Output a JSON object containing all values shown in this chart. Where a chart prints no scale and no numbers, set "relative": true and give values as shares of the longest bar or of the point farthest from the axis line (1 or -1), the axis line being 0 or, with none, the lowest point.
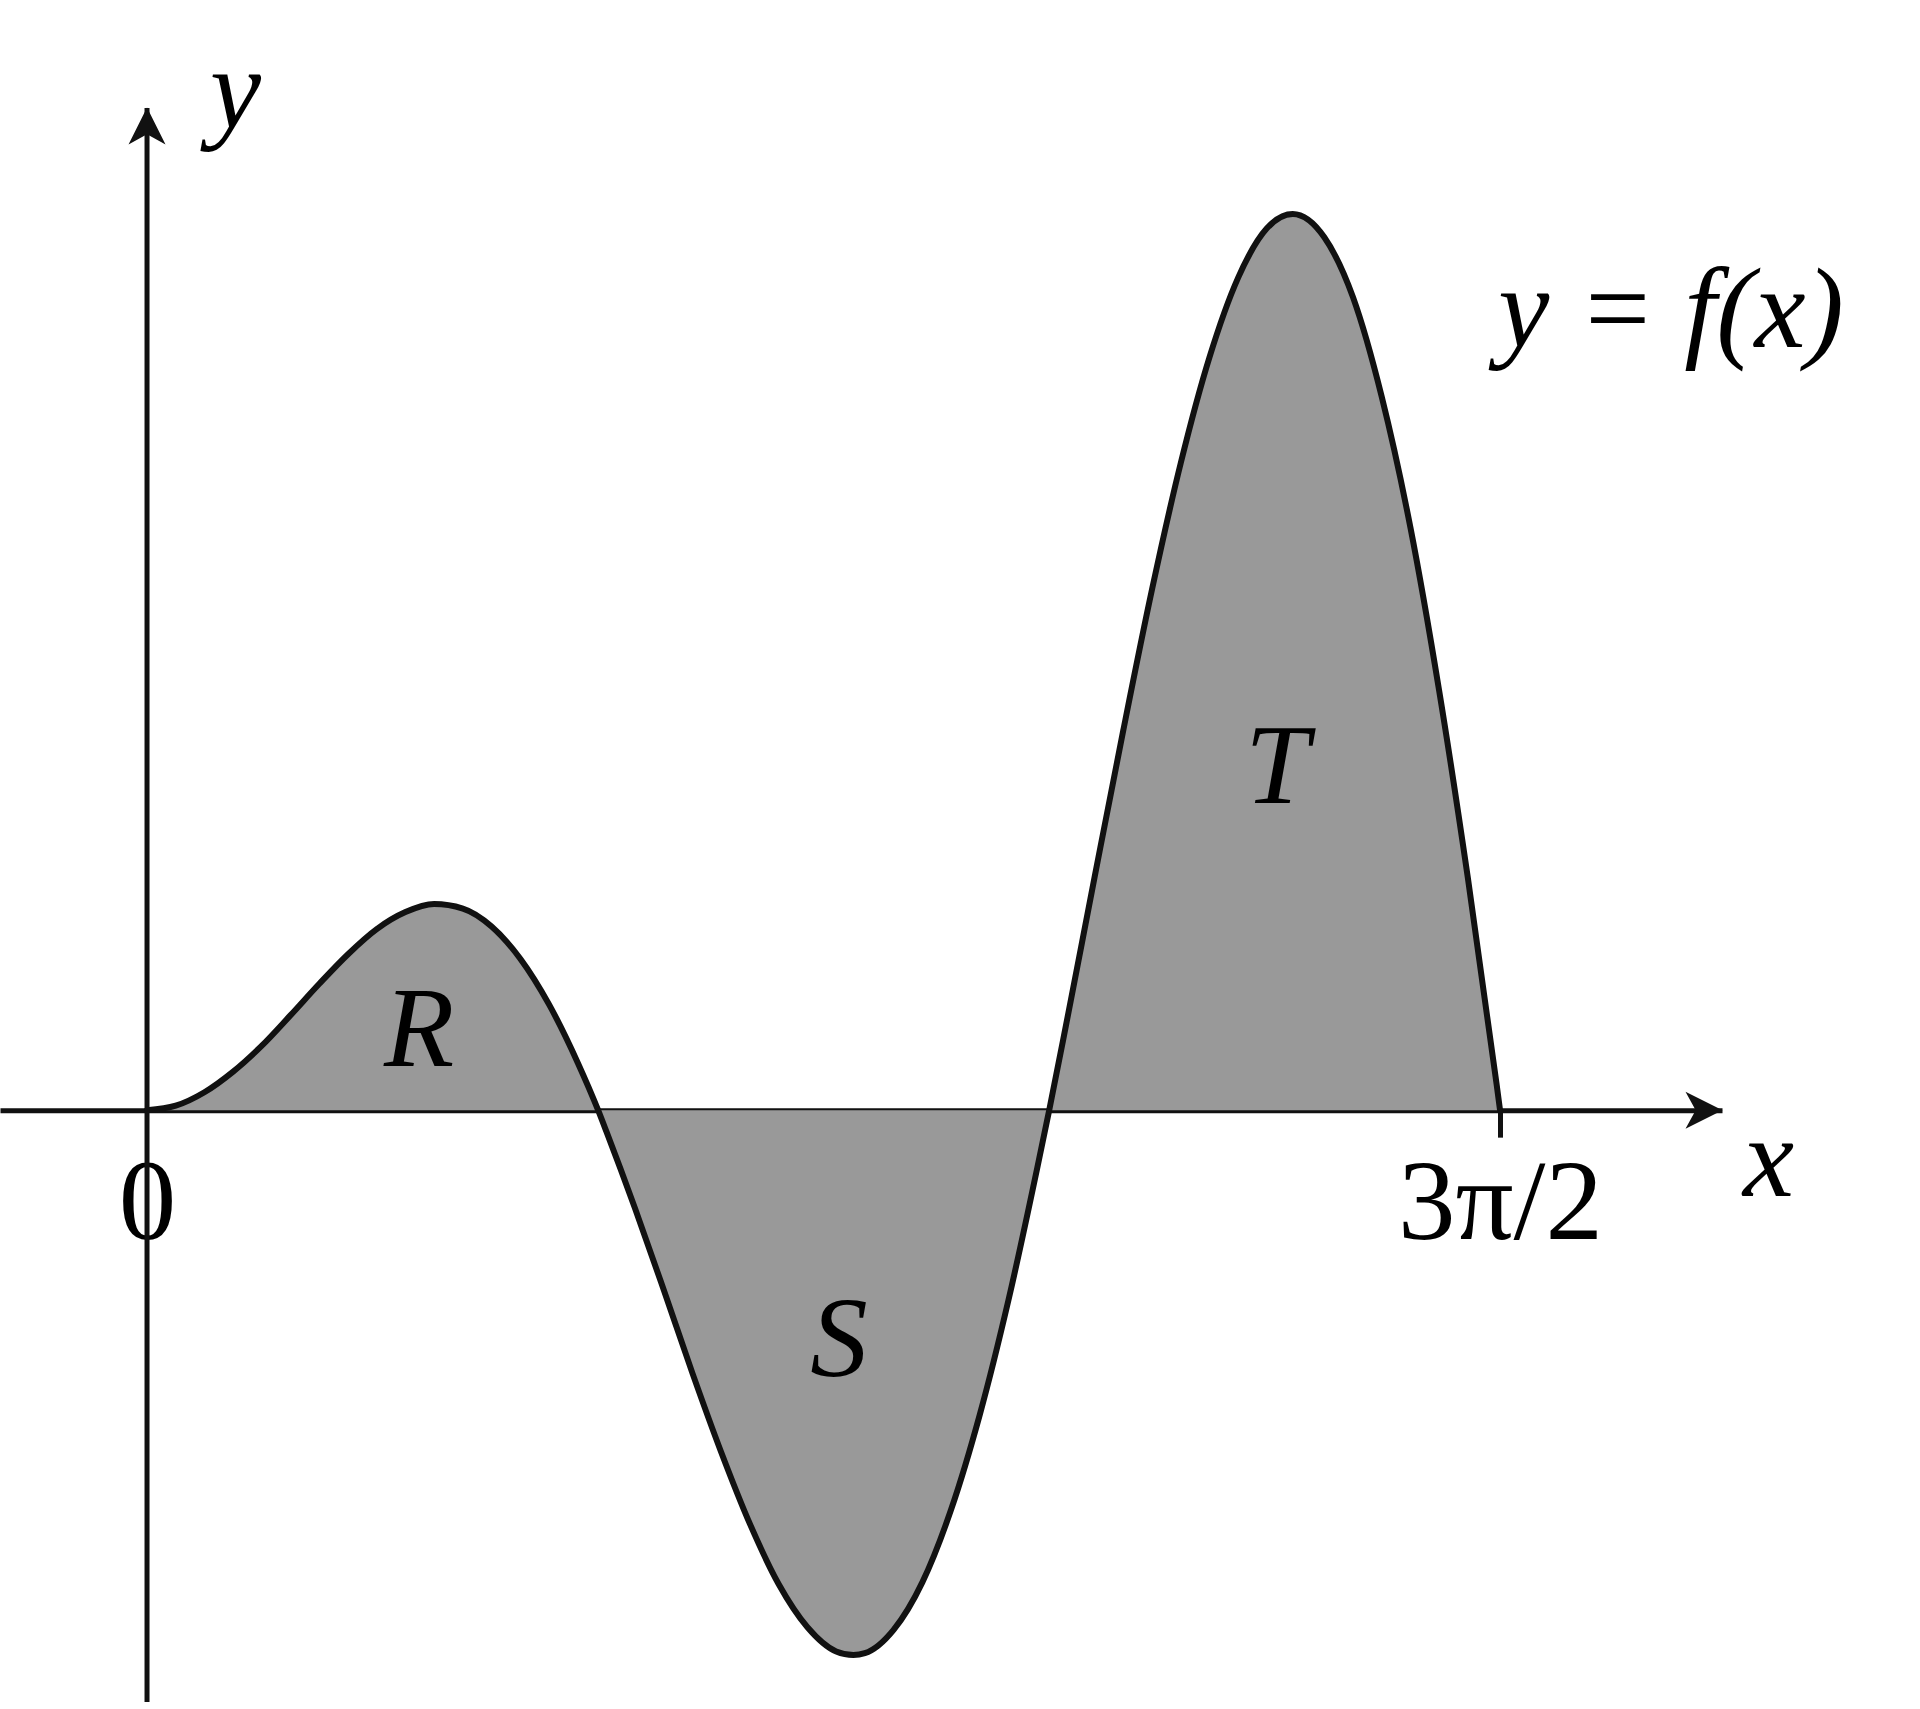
{
  "chart_data": {
    "type": "area",
    "xlabel": "x",
    "ylabel": "y",
    "relative": true,
    "x": [
      0,
      0.1,
      0.2,
      0.3,
      0.4,
      0.5,
      0.6,
      0.7,
      0.8,
      0.9,
      1.0,
      1.1,
      1.2,
      1.3,
      1.4,
      1.5,
      1.571,
      1.6,
      1.7,
      1.8,
      1.9,
      2.0,
      2.1,
      2.2,
      2.3,
      2.4,
      2.46,
      2.5,
      2.6,
      2.7,
      2.8,
      2.9,
      3.0,
      3.1,
      3.142,
      3.2,
      3.3,
      3.4,
      3.5,
      3.6,
      3.7,
      3.8,
      3.9,
      3.99,
      4.1,
      4.2,
      4.3,
      4.4,
      4.5,
      4.6,
      4.7,
      4.712
    ],
    "values": [
      0,
      0.005,
      0.02,
      0.043,
      0.072,
      0.106,
      0.141,
      0.174,
      0.202,
      0.221,
      0.23,
      0.225,
      0.205,
      0.169,
      0.118,
      0.053,
      0,
      -0.024,
      -0.11,
      -0.201,
      -0.294,
      -0.382,
      -0.462,
      -0.529,
      -0.577,
      -0.604,
      -0.608,
      -0.606,
      -0.58,
      -0.527,
      -0.446,
      -0.34,
      -0.212,
      -0.065,
      0,
      0.094,
      0.26,
      0.424,
      0.581,
      0.722,
      0.84,
      0.929,
      0.984,
      1,
      0.974,
      0.907,
      0.796,
      0.65,
      0.468,
      0.259,
      0.029,
      0
    ],
    "color": "#999999",
    "xlim": [
      -0.512,
      5.485
    ],
    "xticks": [
      0,
      {
        "value": 4.712,
        "label": "3π/2"
      }
    ],
    "annotations": [
      "y = f(x)",
      "R",
      "S",
      "T"
    ]
  }
}
